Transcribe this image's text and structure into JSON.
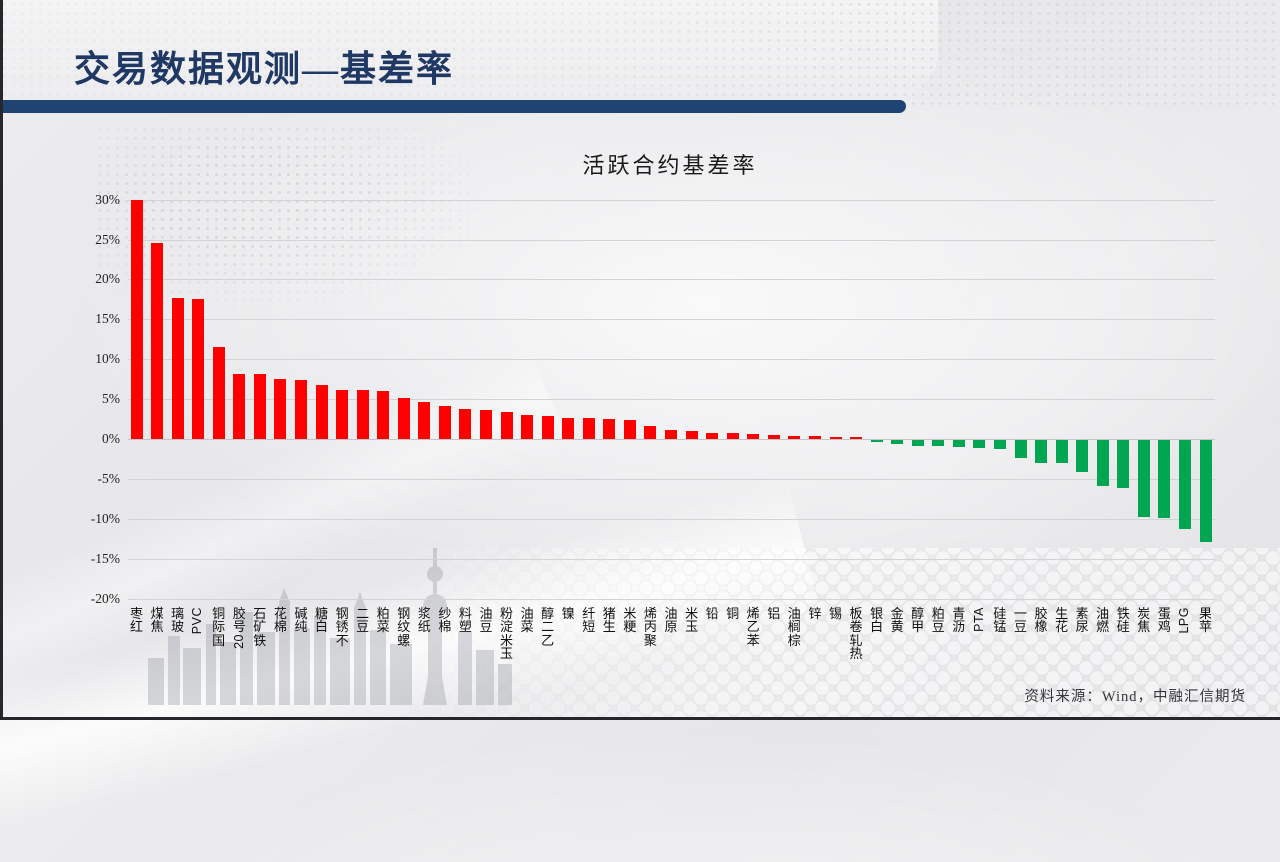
{
  "slide": {
    "title": "交易数据观测—基差率",
    "source_note": "资料来源：Wind，中融汇信期货"
  },
  "colors": {
    "accent_bar": "#1f4373",
    "title_text": "#1f3864",
    "positive_bar": "#fe0000",
    "negative_bar": "#00a651",
    "gridline": "#d3d3d6"
  },
  "chart_data": {
    "type": "bar",
    "title": "活跃合约基差率",
    "xlabel": "",
    "ylabel": "",
    "ylim": [
      -20,
      30
    ],
    "y_tick_step": 5,
    "y_tick_labels": [
      "30%",
      "25%",
      "20%",
      "15%",
      "10%",
      "5%",
      "0%",
      "-5%",
      "-10%",
      "-15%",
      "-20%"
    ],
    "grid": true,
    "legend": "none",
    "positive_color": "#fe0000",
    "negative_color": "#00a651",
    "categories": [
      "红枣",
      "焦煤",
      "玻璃",
      "PVC",
      "国际铜",
      "20号胶",
      "铁矿石",
      "棉花",
      "纯碱",
      "白糖",
      "不锈钢",
      "豆二",
      "菜粕",
      "螺纹钢",
      "纸浆",
      "棉纱",
      "塑料",
      "豆油",
      "玉米淀粉",
      "菜油",
      "乙二醇",
      "镍",
      "短纤",
      "生猪",
      "粳米",
      "聚丙烯",
      "原油",
      "玉米",
      "铅",
      "铜",
      "苯乙烯",
      "铝",
      "棕榈油",
      "锌",
      "锡",
      "热轧卷板",
      "白银",
      "黄金",
      "甲醇",
      "豆粕",
      "沥青",
      "PTA",
      "锰硅",
      "豆一",
      "橡胶",
      "花生",
      "尿素",
      "燃油",
      "硅铁",
      "焦炭",
      "鸡蛋",
      "LPG",
      "苹果"
    ],
    "values": [
      30.0,
      24.6,
      17.7,
      17.6,
      11.5,
      8.2,
      8.2,
      7.5,
      7.4,
      6.8,
      6.2,
      6.1,
      6.0,
      5.2,
      4.7,
      4.1,
      3.8,
      3.6,
      3.4,
      3.0,
      2.9,
      2.7,
      2.7,
      2.5,
      2.4,
      1.6,
      1.1,
      1.0,
      0.8,
      0.7,
      0.6,
      0.5,
      0.4,
      0.35,
      0.3,
      0.25,
      -0.3,
      -0.5,
      -0.7,
      -0.8,
      -0.9,
      -1.0,
      -1.1,
      -2.2,
      -2.9,
      -2.9,
      -4.0,
      -5.7,
      -6.0,
      -9.6,
      -9.8,
      -11.2,
      -12.8
    ]
  }
}
